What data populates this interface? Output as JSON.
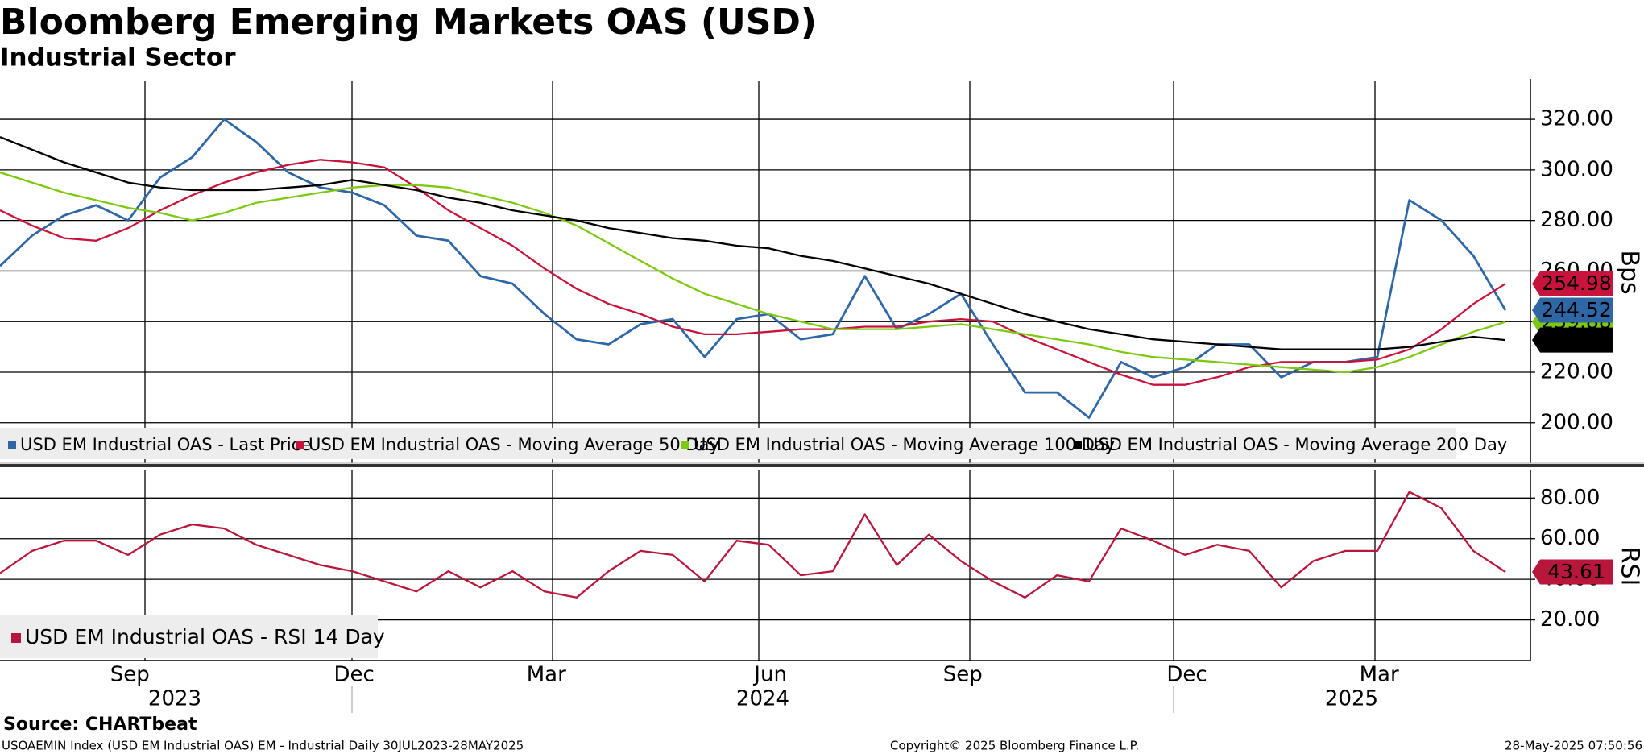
{
  "chart_data": [
    {
      "type": "line",
      "title": "Bloomberg Emerging Markets OAS (USD)",
      "subtitle": "Industrial Sector",
      "y_axis_label": "Bps",
      "categories": [
        null,
        null,
        null,
        "Sep",
        null,
        null,
        null,
        null,
        null,
        null,
        "Dec",
        null,
        null,
        null,
        null,
        null,
        "Mar",
        null,
        null,
        null,
        null,
        null,
        null,
        "Jun",
        null,
        null,
        null,
        null,
        null,
        "Sep",
        null,
        null,
        null,
        null,
        null,
        null,
        "Dec",
        null,
        null,
        null,
        null,
        null,
        "Mar",
        null,
        null,
        null,
        null,
        null
      ],
      "x_year_labels": [
        "2023",
        "2024",
        "2025"
      ],
      "ylim": [
        184,
        335
      ],
      "yticks": [
        {
          "value": 200,
          "label": "200.00"
        },
        {
          "value": 220,
          "label": "220.00"
        },
        {
          "value": 240,
          "label": "240.00"
        },
        {
          "value": 260,
          "label": "260.00"
        },
        {
          "value": 280,
          "label": "280.00"
        },
        {
          "value": 300,
          "label": "300.00"
        },
        {
          "value": 320,
          "label": "320.00"
        }
      ],
      "grid": true,
      "legend": "bottom-left",
      "series": [
        {
          "name": "USD EM Industrial OAS - Last Price",
          "color": "#2f67a6",
          "values": [
            262,
            274,
            282,
            286,
            280,
            297,
            305,
            320,
            311,
            299,
            293,
            291,
            286,
            274,
            272,
            258,
            255,
            243,
            233,
            231,
            239,
            241,
            226,
            241,
            243,
            233,
            235,
            258,
            237,
            243,
            251,
            231,
            212,
            212,
            202,
            224,
            218,
            222,
            231,
            231,
            218,
            224,
            224,
            226,
            288,
            280,
            266,
            244.52
          ]
        },
        {
          "name": "USD EM Industrial OAS - Moving Average 50 Day",
          "color": "#c8143c",
          "values": [
            284,
            278,
            273,
            272,
            277,
            284,
            290,
            295,
            299,
            302,
            304,
            303,
            301,
            293,
            284,
            277,
            270,
            261,
            253,
            247,
            243,
            238,
            235,
            235,
            236,
            237,
            237,
            238,
            238,
            240,
            241,
            240,
            234,
            229,
            224,
            219,
            215,
            215,
            218,
            222,
            224,
            224,
            224,
            225,
            229,
            237,
            247,
            254.98
          ]
        },
        {
          "name": "USD EM Industrial OAS - Moving Average 100 Day",
          "color": "#7cc90e",
          "values": [
            299,
            295,
            291,
            288,
            285,
            283,
            280,
            283,
            287,
            289,
            291,
            293,
            294,
            294,
            293,
            290,
            287,
            283,
            278,
            271,
            264,
            257,
            251,
            247,
            243,
            240,
            237,
            237,
            237,
            238,
            239,
            237,
            235,
            233,
            231,
            228,
            226,
            225,
            224,
            223,
            222,
            221,
            220,
            222,
            226,
            231,
            236,
            239.88
          ]
        },
        {
          "name": "USD EM Industrial OAS - Moving Average 200 Day",
          "color": "#000000",
          "values": [
            313,
            308,
            303,
            299,
            295,
            293,
            292,
            292,
            292,
            293,
            294,
            296,
            294,
            292,
            289,
            287,
            284,
            282,
            280,
            277,
            275,
            273,
            272,
            270,
            269,
            266,
            264,
            261,
            258,
            255,
            251,
            247,
            243,
            240,
            237,
            235,
            233,
            232,
            231,
            230,
            229,
            229,
            229,
            229,
            230,
            232,
            234,
            232.7
          ],
          "value_labels": [
            null,
            null,
            null,
            null,
            null,
            null,
            null,
            null,
            null,
            null,
            null,
            null,
            null,
            null,
            null,
            null,
            null,
            null,
            null,
            null,
            null,
            null,
            null,
            null,
            null,
            null,
            null,
            null,
            null,
            null,
            null,
            null,
            null,
            null,
            null,
            null,
            null,
            null,
            null,
            null,
            null,
            null,
            null,
            null,
            null,
            null,
            null,
            "232.70"
          ]
        }
      ]
    },
    {
      "type": "line",
      "y_axis_label": "RSI",
      "ylim": [
        0,
        94
      ],
      "yticks": [
        {
          "value": 20,
          "label": "20.00"
        },
        {
          "value": 40,
          "label": "40.00"
        },
        {
          "value": 60,
          "label": "60.00"
        },
        {
          "value": 80,
          "label": "80.00"
        }
      ],
      "grid": true,
      "legend": "bottom-left",
      "series": [
        {
          "name": "USD EM Industrial OAS - RSI 14 Day",
          "color": "#b8173b",
          "values": [
            43,
            54,
            59,
            59,
            52,
            62,
            67,
            65,
            57,
            52,
            47,
            44,
            39,
            34,
            44,
            36,
            44,
            34,
            31,
            44,
            54,
            52,
            39,
            59,
            57,
            42,
            44,
            72,
            47,
            62,
            49,
            39,
            31,
            42,
            39,
            65,
            59,
            52,
            57,
            54,
            36,
            49,
            54,
            54,
            83,
            75,
            54,
            43.61
          ]
        }
      ]
    }
  ],
  "footer": {
    "source": "Source: CHARTbeat",
    "description": "USOAEMIN Index (USD EM Industrial OAS) EM - Industrial  Daily 30JUL2023-28MAY2025",
    "copyright": "Copyright© 2025 Bloomberg Finance L.P.",
    "timestamp": "28-May-2025 07:50:56"
  }
}
